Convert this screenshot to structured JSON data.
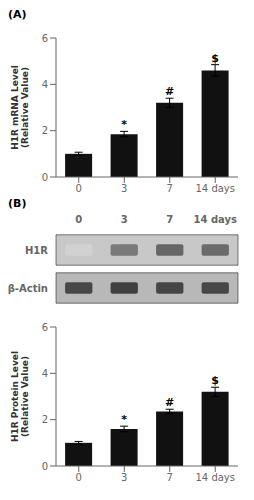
{
  "chart_data": [
    {
      "type": "bar",
      "title": "(A)",
      "categories": [
        "0",
        "3",
        "7",
        "14 days"
      ],
      "values": [
        1.0,
        1.85,
        3.2,
        4.6
      ],
      "errors": [
        0.07,
        0.12,
        0.2,
        0.25
      ],
      "ylabel": "H1R mRNA Level\n(Relative Value)",
      "ylim": [
        0,
        6
      ],
      "yticks": [
        0,
        2,
        4,
        6
      ],
      "annotations": [
        null,
        "*",
        "#",
        "$"
      ],
      "color": "#111111"
    },
    {
      "type": "heatmap",
      "title": "(B)",
      "categories": [
        "0",
        "3",
        "7",
        "14 days"
      ],
      "series": [
        {
          "name": "H1R",
          "values": [
            0.18,
            0.52,
            0.6,
            0.58
          ]
        },
        {
          "name": "β-Actin",
          "values": [
            0.72,
            0.75,
            0.73,
            0.72
          ]
        }
      ]
    },
    {
      "type": "bar",
      "categories": [
        "0",
        "3",
        "7",
        "14 days"
      ],
      "values": [
        1.0,
        1.6,
        2.35,
        3.2
      ],
      "errors": [
        0.06,
        0.12,
        0.1,
        0.2
      ],
      "ylabel": "H1R Protein Level\n(Relative Value)",
      "ylim": [
        0,
        6
      ],
      "yticks": [
        0,
        2,
        4,
        6
      ],
      "annotations": [
        null,
        "*",
        "#",
        "$"
      ],
      "color": "#111111"
    }
  ]
}
